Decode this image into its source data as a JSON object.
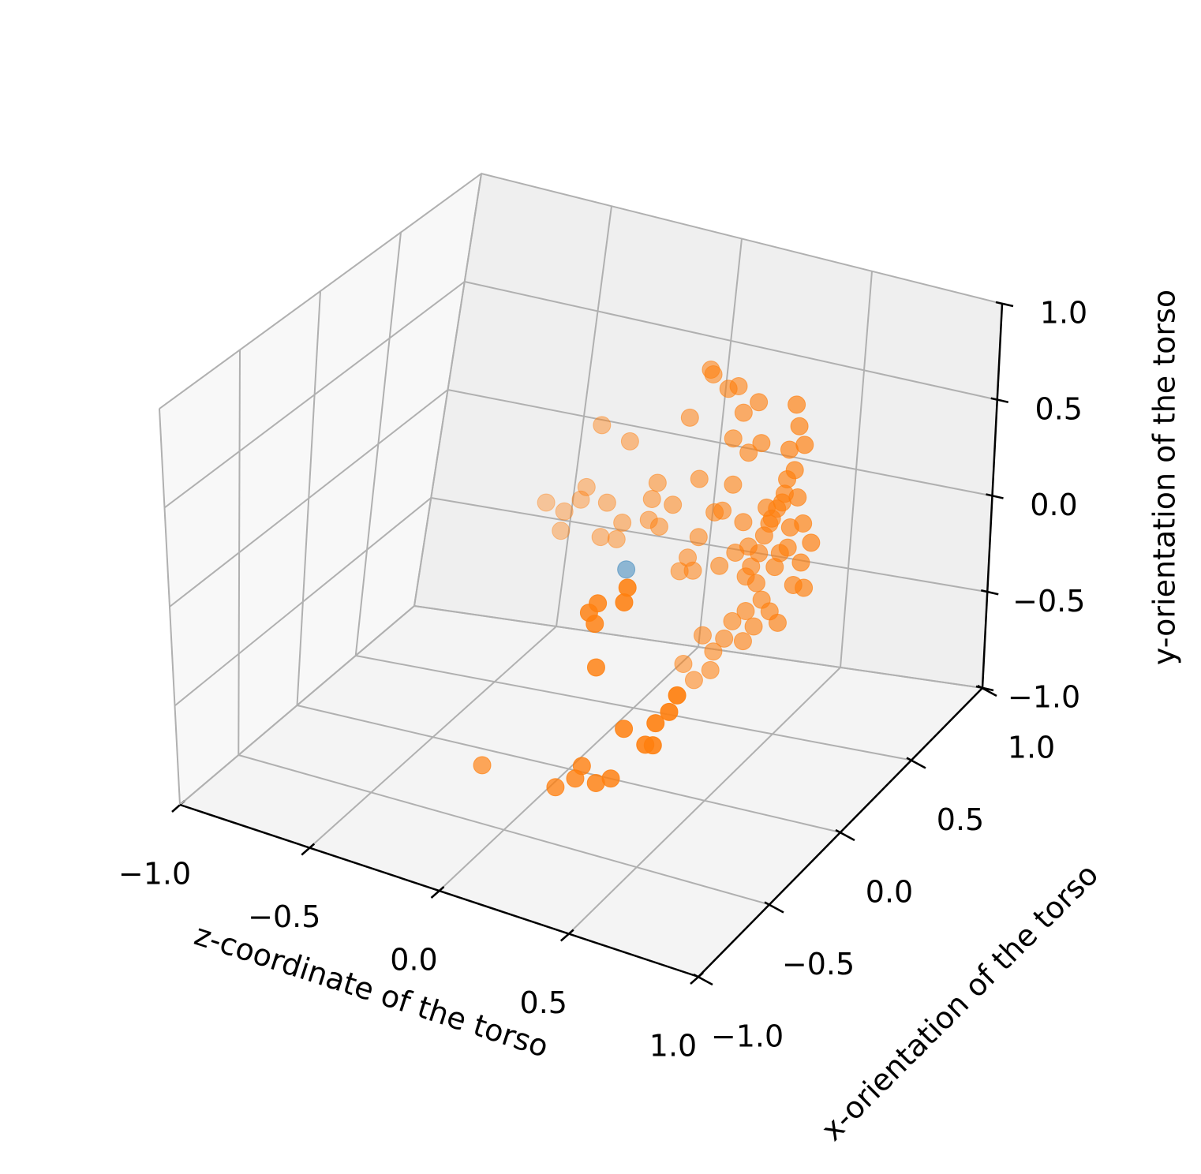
{
  "chart_data": {
    "type": "scatter3d",
    "xlabel": "z-coordinate of the torso",
    "ylabel": "x-orientation of the torso",
    "zlabel": "y-orientation of the torso",
    "xlim": [
      -1,
      1
    ],
    "ylim": [
      -1,
      1
    ],
    "zlim": [
      -1,
      1
    ],
    "xticks": [
      {
        "value": -1,
        "label": "−1.0"
      },
      {
        "value": -0.5,
        "label": "−0.5"
      },
      {
        "value": 0,
        "label": "0.0"
      },
      0.5,
      {
        "value": 1,
        "label": "1.0"
      }
    ],
    "yticks": [
      {
        "value": -1,
        "label": "−1.0"
      },
      {
        "value": -0.5,
        "label": "−0.5"
      },
      {
        "value": 0,
        "label": "0.0"
      },
      0.5,
      {
        "value": 1,
        "label": "1.0"
      }
    ],
    "zticks": [
      {
        "value": -1,
        "label": "−1.0"
      },
      {
        "value": -0.5,
        "label": "−0.5"
      },
      {
        "value": 0,
        "label": "0.0"
      },
      0.5,
      {
        "value": 1,
        "label": "1.0"
      }
    ],
    "grid": true,
    "depthshade": true,
    "series": [
      {
        "color": "#1f77b4",
        "x": [
          0.05
        ],
        "y": [
          0.3
        ],
        "z": [
          -0.16
        ]
      },
      {
        "color": "#ff7f0e",
        "x": [
          0.36,
          0.37,
          0.43,
          0.47,
          0.49,
          0.55,
          0.7,
          0.71,
          0.28,
          0.45,
          0.56,
          0.73,
          0.51,
          0.67,
          -0.06,
          0.05,
          -0.11,
          -0.26,
          -0.19,
          -0.2,
          -0.13,
          -0.03,
          0.16,
          0.14,
          0.32,
          0.22,
          0.45,
          0.03,
          0.13,
          0.17,
          -0.05,
          0.01,
          0.32,
          0.38,
          0.41,
          0.28,
          0.25,
          0.3,
          0.4,
          0.46,
          0.49,
          0.51,
          0.5,
          0.54,
          0.59,
          0.62,
          0.65,
          0.66,
          0.69,
          0.63,
          0.66,
          0.72,
          0.75,
          0.71,
          0.68,
          0.72,
          0.56,
          0.59,
          0.5,
          0.62,
          0.53,
          0.45,
          0.42,
          0.49,
          0.34,
          0.38,
          0.37,
          0.27,
          0.31,
          0.6,
          0.64,
          0.57,
          0.55,
          0.52,
          0.61,
          0.67,
          0.7,
          0.58,
          -0.07,
          0.21,
          0.32,
          0.43,
          0.37,
          0.29,
          0.58,
          0.61,
          0.5,
          0.63,
          0.69,
          0.73,
          0.41,
          0.42,
          0.4,
          0.55,
          0.57,
          0.44
        ],
        "y": [
          0.3,
          0.3,
          0.3,
          0.3,
          0.3,
          0.3,
          0.3,
          0.3,
          0.3,
          0.3,
          0.3,
          0.3,
          0.3,
          0.3,
          0.3,
          0.3,
          0.3,
          0.3,
          0.3,
          0.3,
          0.3,
          0.3,
          0.3,
          0.3,
          0.3,
          0.3,
          0.3,
          0.3,
          0.3,
          0.3,
          0.3,
          0.3,
          0.3,
          0.3,
          0.3,
          0.3,
          0.3,
          0.3,
          0.3,
          0.3,
          0.3,
          0.3,
          0.3,
          0.3,
          0.3,
          0.3,
          0.3,
          0.3,
          0.3,
          0.3,
          0.3,
          0.3,
          0.3,
          0.3,
          0.3,
          0.3,
          0.3,
          0.3,
          0.3,
          0.3,
          0.3,
          0.3,
          0.3,
          0.3,
          0.3,
          0.3,
          0.3,
          0.3,
          0.3,
          0.3,
          0.3,
          0.3,
          0.3,
          0.3,
          0.3,
          0.3,
          0.3,
          0.3,
          -0.5,
          -0.5,
          -0.5,
          -0.5,
          -0.5,
          -0.5,
          -0.5,
          -0.5,
          -0.5,
          -0.5,
          -0.5,
          -0.5,
          -0.5,
          -0.5,
          -0.5,
          -0.5,
          -0.5,
          -0.5
        ],
        "z": [
          0.98,
          0.96,
          0.91,
          0.94,
          0.81,
          0.89,
          0.94,
          0.83,
          0.7,
          0.66,
          0.68,
          0.74,
          0.61,
          0.69,
          0.53,
          0.49,
          0.2,
          0.07,
          0.05,
          -0.05,
          0.13,
          0.15,
          0.32,
          0.23,
          0.4,
          0.23,
          0.42,
          0.07,
          0.12,
          0.1,
          -0.03,
          -0.02,
          0.1,
          0.25,
          0.27,
          -0.02,
          -0.1,
          -0.08,
          -0.02,
          0.07,
          0.24,
          0.12,
          -0.04,
          -0.06,
          0.27,
          0.36,
          0.45,
          0.53,
          0.59,
          0.13,
          0.17,
          0.32,
          0.23,
          0.11,
          -0.02,
          -0.02,
          -0.14,
          -0.19,
          -0.22,
          -0.24,
          -0.29,
          -0.29,
          -0.39,
          -0.38,
          -0.4,
          -0.47,
          -0.57,
          -0.57,
          -0.64,
          0.3,
          0.4,
          0.2,
          0.1,
          0.02,
          0.05,
          0.28,
          0.45,
          0.35,
          -0.69,
          -0.69,
          -0.53,
          -0.55,
          -0.6,
          -0.61,
          -0.3,
          -0.29,
          -0.25,
          -0.16,
          -0.07,
          0.04,
          0.04,
          0.28,
          0.33,
          0.46,
          0.55,
          0.4
        ]
      }
    ]
  }
}
